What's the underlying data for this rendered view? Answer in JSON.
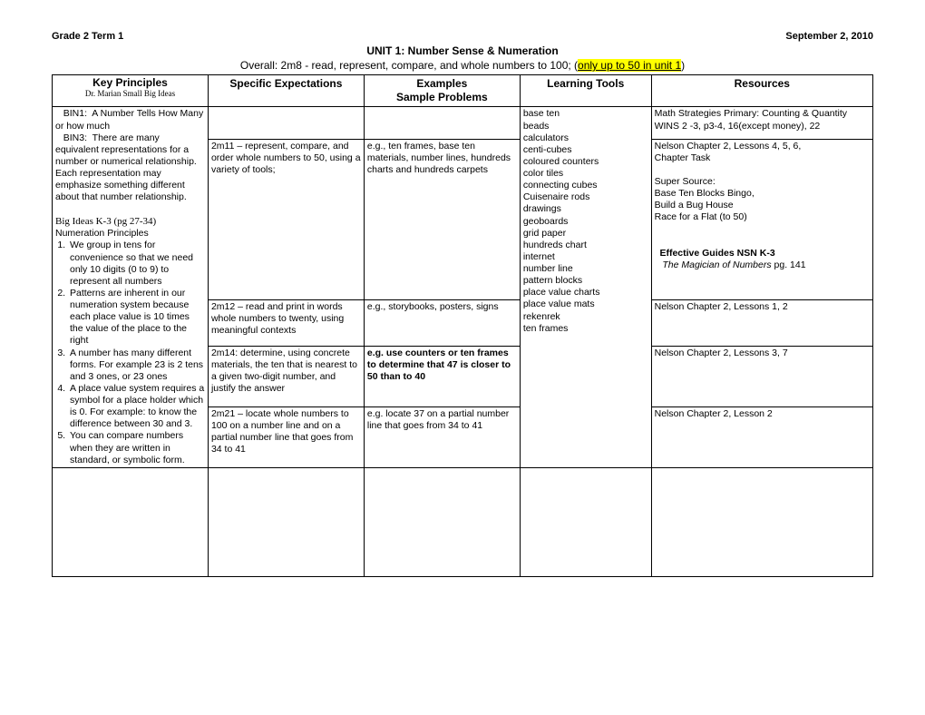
{
  "header": {
    "left": "Grade 2 Term 1",
    "right": "September 2, 2010",
    "unit_title": "UNIT 1: Number Sense & Numeration",
    "overall_prefix": "Overall: 2m8 - read, represent, compare, and whole numbers to 100; (",
    "overall_highlight": "only up to 50 in unit 1",
    "overall_suffix": ")"
  },
  "columns": {
    "c1": "Key Principles",
    "c1_sub": "Dr. Marian Small Big Ideas",
    "c2": "Specific Expectations",
    "c3_line1": "Examples",
    "c3_line2": "Sample Problems",
    "c4": "Learning Tools",
    "c5": "Resources"
  },
  "col1": {
    "bin1": "   BIN1:  A Number Tells How Many or how much",
    "bin3": "   BIN3:  There are many equivalent representations for a number or numerical relationship.  Each representation may emphasize something different about that number relationship.",
    "bigideas": "Big Ideas K-3 (pg 27-34)",
    "np_head": "Numeration Principles",
    "p1": "We group in tens for convenience so that we need only 10 digits (0 to 9) to represent all numbers",
    "p2": "Patterns are inherent in our numeration system because each place value is 10 times the value of the place to the right",
    "p3": "A number has many different forms.  For example 23 is 2 tens and 3 ones, or 23 ones",
    "p4": "A place value system requires a symbol for a place holder which is 0.  For example: to know the difference between 30 and 3.",
    "p5": "You can compare numbers when they are written in standard, or symbolic form."
  },
  "tools": "base ten\nbeads\ncalculators\ncenti-cubes\ncoloured counters\ncolor tiles\nconnecting cubes\nCuisenaire rods\ndrawings\ngeoboards\ngrid paper\nhundreds chart\ninternet\nnumber line\npattern blocks\nplace value charts\nplace value mats\nrekenrek\nten frames",
  "resources": {
    "line1": "Math Strategies Primary: Counting & Quantity",
    "line2": "WINS 2 -3, p3-4, 16(except money), 22",
    "line3a": "Nelson Chapter 2, Lessons 4, 5, 6,",
    "line3b": " Chapter Task",
    "ss_head": "Super Source:",
    "ss1": " Base Ten Blocks Bingo,",
    "ss2": " Build a Bug House",
    "ss3": " Race for a Flat (to 50)",
    "eg_head": "Effective Guides NSN K-3",
    "eg_sub": "The Magician of Numbers",
    "eg_pg": " pg. 141"
  },
  "rows": {
    "r1": {
      "spec": "2m11 – represent, compare, and order whole numbers to 50, using a variety of tools;",
      "ex": "e.g., ten frames, base ten materials, number lines, hundreds charts and hundreds carpets"
    },
    "r2": {
      "spec": "2m12 – read and print in words whole numbers to twenty, using meaningful contexts",
      "ex": "e.g., storybooks, posters, signs",
      "res": "Nelson Chapter 2, Lessons 1, 2"
    },
    "r3": {
      "spec": "2m14: determine, using concrete materials, the ten that is nearest to a given two-digit number, and justify the answer",
      "ex": "e.g. use counters or ten frames to determine that 47 is closer to 50 than to 40",
      "res": "Nelson Chapter 2, Lessons 3, 7"
    },
    "r4": {
      "spec": "2m21 – locate whole numbers to 100 on a number line and on a partial number line that goes from 34 to 41",
      "ex": "e.g. locate 37 on a partial number line that goes from 34 to 41",
      "res": "Nelson Chapter 2, Lesson 2"
    }
  }
}
